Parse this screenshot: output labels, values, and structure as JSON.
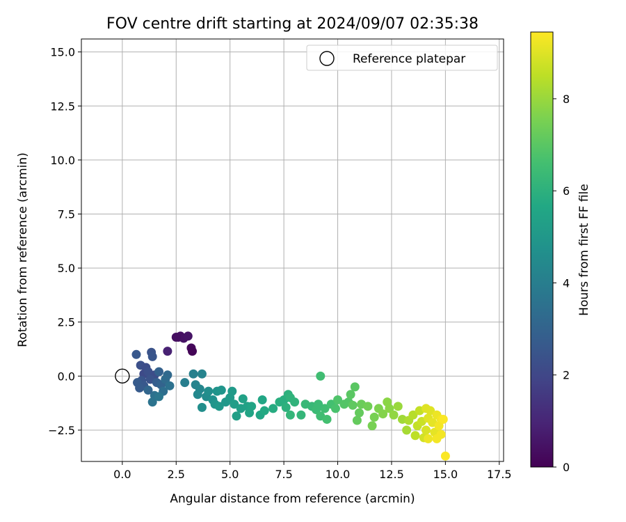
{
  "chart_data": {
    "type": "scatter",
    "title": "FOV centre drift starting at 2024/09/07 02:35:38",
    "xlabel": "Angular distance from reference (arcmin)",
    "ylabel": "Rotation from reference (arcmin)",
    "xlim": [
      -1.9,
      17.7
    ],
    "ylim": [
      -3.95,
      15.6
    ],
    "xticks": [
      "0.0",
      "2.5",
      "5.0",
      "7.5",
      "10.0",
      "12.5",
      "15.0",
      "17.5"
    ],
    "yticks": [
      "−2.5",
      "0.0",
      "2.5",
      "5.0",
      "7.5",
      "10.0",
      "12.5",
      "15.0"
    ],
    "xtick_values": [
      0,
      2.5,
      5,
      7.5,
      10,
      12.5,
      15,
      17.5
    ],
    "ytick_values": [
      -2.5,
      0,
      2.5,
      5,
      7.5,
      10,
      12.5,
      15
    ],
    "grid": true,
    "legend": {
      "position": "top-right",
      "entries": [
        {
          "label": "Reference platepar",
          "marker": "open-circle"
        }
      ]
    },
    "reference_point": {
      "x": 0,
      "y": 0
    },
    "colorbar": {
      "label": "Hours from first FF file",
      "colormap": "viridis",
      "range": [
        0,
        9.45
      ],
      "ticks": [
        "0",
        "2",
        "4",
        "6",
        "8"
      ],
      "tick_values": [
        0,
        2,
        4,
        6,
        8
      ]
    },
    "series": [
      {
        "points": [
          [
            2.6,
            1.8,
            0.3
          ],
          [
            2.7,
            1.85,
            0.4
          ],
          [
            2.85,
            1.75,
            0.45
          ],
          [
            3.05,
            1.85,
            0.5
          ],
          [
            2.5,
            1.8,
            0.35
          ],
          [
            3.2,
            1.3,
            0.2
          ],
          [
            3.25,
            1.15,
            0.1
          ],
          [
            2.1,
            1.15,
            0.9
          ],
          [
            0.65,
            1.0,
            2.6
          ],
          [
            1.35,
            1.1,
            2.4
          ],
          [
            1.4,
            0.9,
            2.5
          ],
          [
            0.85,
            0.5,
            2.3
          ],
          [
            1.1,
            0.4,
            2.2
          ],
          [
            1.0,
            0.1,
            2.1
          ],
          [
            1.2,
            0.2,
            2.3
          ],
          [
            1.5,
            0.05,
            2.2
          ],
          [
            0.9,
            -0.2,
            2.5
          ],
          [
            1.3,
            -0.15,
            2.4
          ],
          [
            0.7,
            -0.3,
            2.7
          ],
          [
            1.0,
            -0.45,
            2.6
          ],
          [
            1.6,
            -0.3,
            2.8
          ],
          [
            1.8,
            -0.4,
            3.0
          ],
          [
            2.1,
            0.05,
            3.2
          ],
          [
            1.7,
            0.2,
            2.9
          ],
          [
            2.0,
            -0.15,
            3.3
          ],
          [
            1.5,
            -0.9,
            3.5
          ],
          [
            1.9,
            -0.7,
            3.4
          ],
          [
            1.4,
            -1.2,
            3.6
          ],
          [
            0.8,
            -0.55,
            2.7
          ],
          [
            1.2,
            -0.65,
            3.1
          ],
          [
            2.2,
            -0.45,
            3.5
          ],
          [
            1.7,
            -0.95,
            3.7
          ],
          [
            2.9,
            -0.3,
            4.0
          ],
          [
            3.3,
            0.1,
            4.1
          ],
          [
            3.7,
            0.1,
            4.2
          ],
          [
            3.4,
            -0.4,
            4.2
          ],
          [
            3.6,
            -0.6,
            4.3
          ],
          [
            3.5,
            -0.85,
            4.4
          ],
          [
            3.9,
            -0.95,
            4.5
          ],
          [
            3.7,
            -1.45,
            4.6
          ],
          [
            4.0,
            -0.7,
            4.6
          ],
          [
            4.2,
            -1.1,
            4.7
          ],
          [
            4.4,
            -0.7,
            4.8
          ],
          [
            4.6,
            -0.65,
            4.9
          ],
          [
            4.3,
            -1.3,
            4.9
          ],
          [
            4.5,
            -1.4,
            5.0
          ],
          [
            4.8,
            -1.2,
            5.0
          ],
          [
            5.0,
            -1.0,
            5.1
          ],
          [
            5.2,
            -1.3,
            5.2
          ],
          [
            5.1,
            -0.7,
            5.1
          ],
          [
            5.3,
            -1.85,
            5.3
          ],
          [
            5.5,
            -1.5,
            5.3
          ],
          [
            5.6,
            -1.05,
            5.4
          ],
          [
            5.8,
            -1.4,
            5.4
          ],
          [
            5.9,
            -1.7,
            5.5
          ],
          [
            6.0,
            -1.4,
            5.5
          ],
          [
            6.5,
            -1.1,
            5.6
          ],
          [
            6.4,
            -1.8,
            5.6
          ],
          [
            6.6,
            -1.6,
            5.7
          ],
          [
            7.0,
            -1.5,
            5.8
          ],
          [
            7.3,
            -1.2,
            5.9
          ],
          [
            7.5,
            -1.1,
            5.9
          ],
          [
            7.7,
            -0.85,
            6.0
          ],
          [
            7.6,
            -1.45,
            6.0
          ],
          [
            7.8,
            -1.0,
            6.1
          ],
          [
            8.0,
            -1.2,
            6.1
          ],
          [
            7.8,
            -1.8,
            6.2
          ],
          [
            8.3,
            -1.8,
            6.2
          ],
          [
            8.5,
            -1.3,
            6.3
          ],
          [
            8.8,
            -1.4,
            6.3
          ],
          [
            9.0,
            -1.55,
            6.4
          ],
          [
            9.2,
            -1.85,
            6.5
          ],
          [
            9.4,
            -1.5,
            6.5
          ],
          [
            9.1,
            -1.3,
            6.4
          ],
          [
            9.2,
            0.0,
            6.5
          ],
          [
            9.5,
            -2.0,
            6.6
          ],
          [
            9.7,
            -1.3,
            6.6
          ],
          [
            9.9,
            -1.5,
            6.7
          ],
          [
            10.0,
            -1.1,
            6.8
          ],
          [
            10.3,
            -1.3,
            6.9
          ],
          [
            10.5,
            -1.2,
            6.9
          ],
          [
            10.6,
            -0.85,
            7.0
          ],
          [
            10.8,
            -0.5,
            7.0
          ],
          [
            10.7,
            -1.35,
            7.1
          ],
          [
            10.9,
            -2.05,
            7.2
          ],
          [
            11.0,
            -1.7,
            7.2
          ],
          [
            11.1,
            -1.3,
            7.3
          ],
          [
            11.4,
            -1.4,
            7.4
          ],
          [
            11.6,
            -2.3,
            7.5
          ],
          [
            11.7,
            -1.9,
            7.5
          ],
          [
            11.9,
            -1.5,
            7.6
          ],
          [
            12.1,
            -1.75,
            7.7
          ],
          [
            12.3,
            -1.2,
            7.8
          ],
          [
            12.4,
            -1.5,
            7.8
          ],
          [
            12.6,
            -1.8,
            7.9
          ],
          [
            12.8,
            -1.4,
            8.0
          ],
          [
            13.0,
            -2.0,
            8.1
          ],
          [
            13.2,
            -2.5,
            8.2
          ],
          [
            13.3,
            -2.05,
            8.3
          ],
          [
            13.5,
            -1.8,
            8.4
          ],
          [
            13.6,
            -2.75,
            8.5
          ],
          [
            13.7,
            -2.3,
            8.6
          ],
          [
            13.8,
            -1.6,
            8.6
          ],
          [
            13.9,
            -2.1,
            8.7
          ],
          [
            14.0,
            -2.85,
            8.8
          ],
          [
            14.1,
            -2.5,
            8.9
          ],
          [
            14.2,
            -1.95,
            9.0
          ],
          [
            14.3,
            -1.6,
            9.0
          ],
          [
            14.4,
            -2.15,
            9.1
          ],
          [
            14.5,
            -2.6,
            9.1
          ],
          [
            14.6,
            -1.8,
            9.2
          ],
          [
            14.7,
            -2.3,
            9.3
          ],
          [
            14.8,
            -2.0,
            9.3
          ],
          [
            14.8,
            -2.7,
            9.3
          ],
          [
            14.2,
            -2.9,
            9.2
          ],
          [
            14.6,
            -2.9,
            9.3
          ],
          [
            15.0,
            -3.7,
            9.4
          ],
          [
            14.9,
            -2.0,
            9.4
          ],
          [
            14.1,
            -1.5,
            9.0
          ]
        ]
      }
    ]
  }
}
